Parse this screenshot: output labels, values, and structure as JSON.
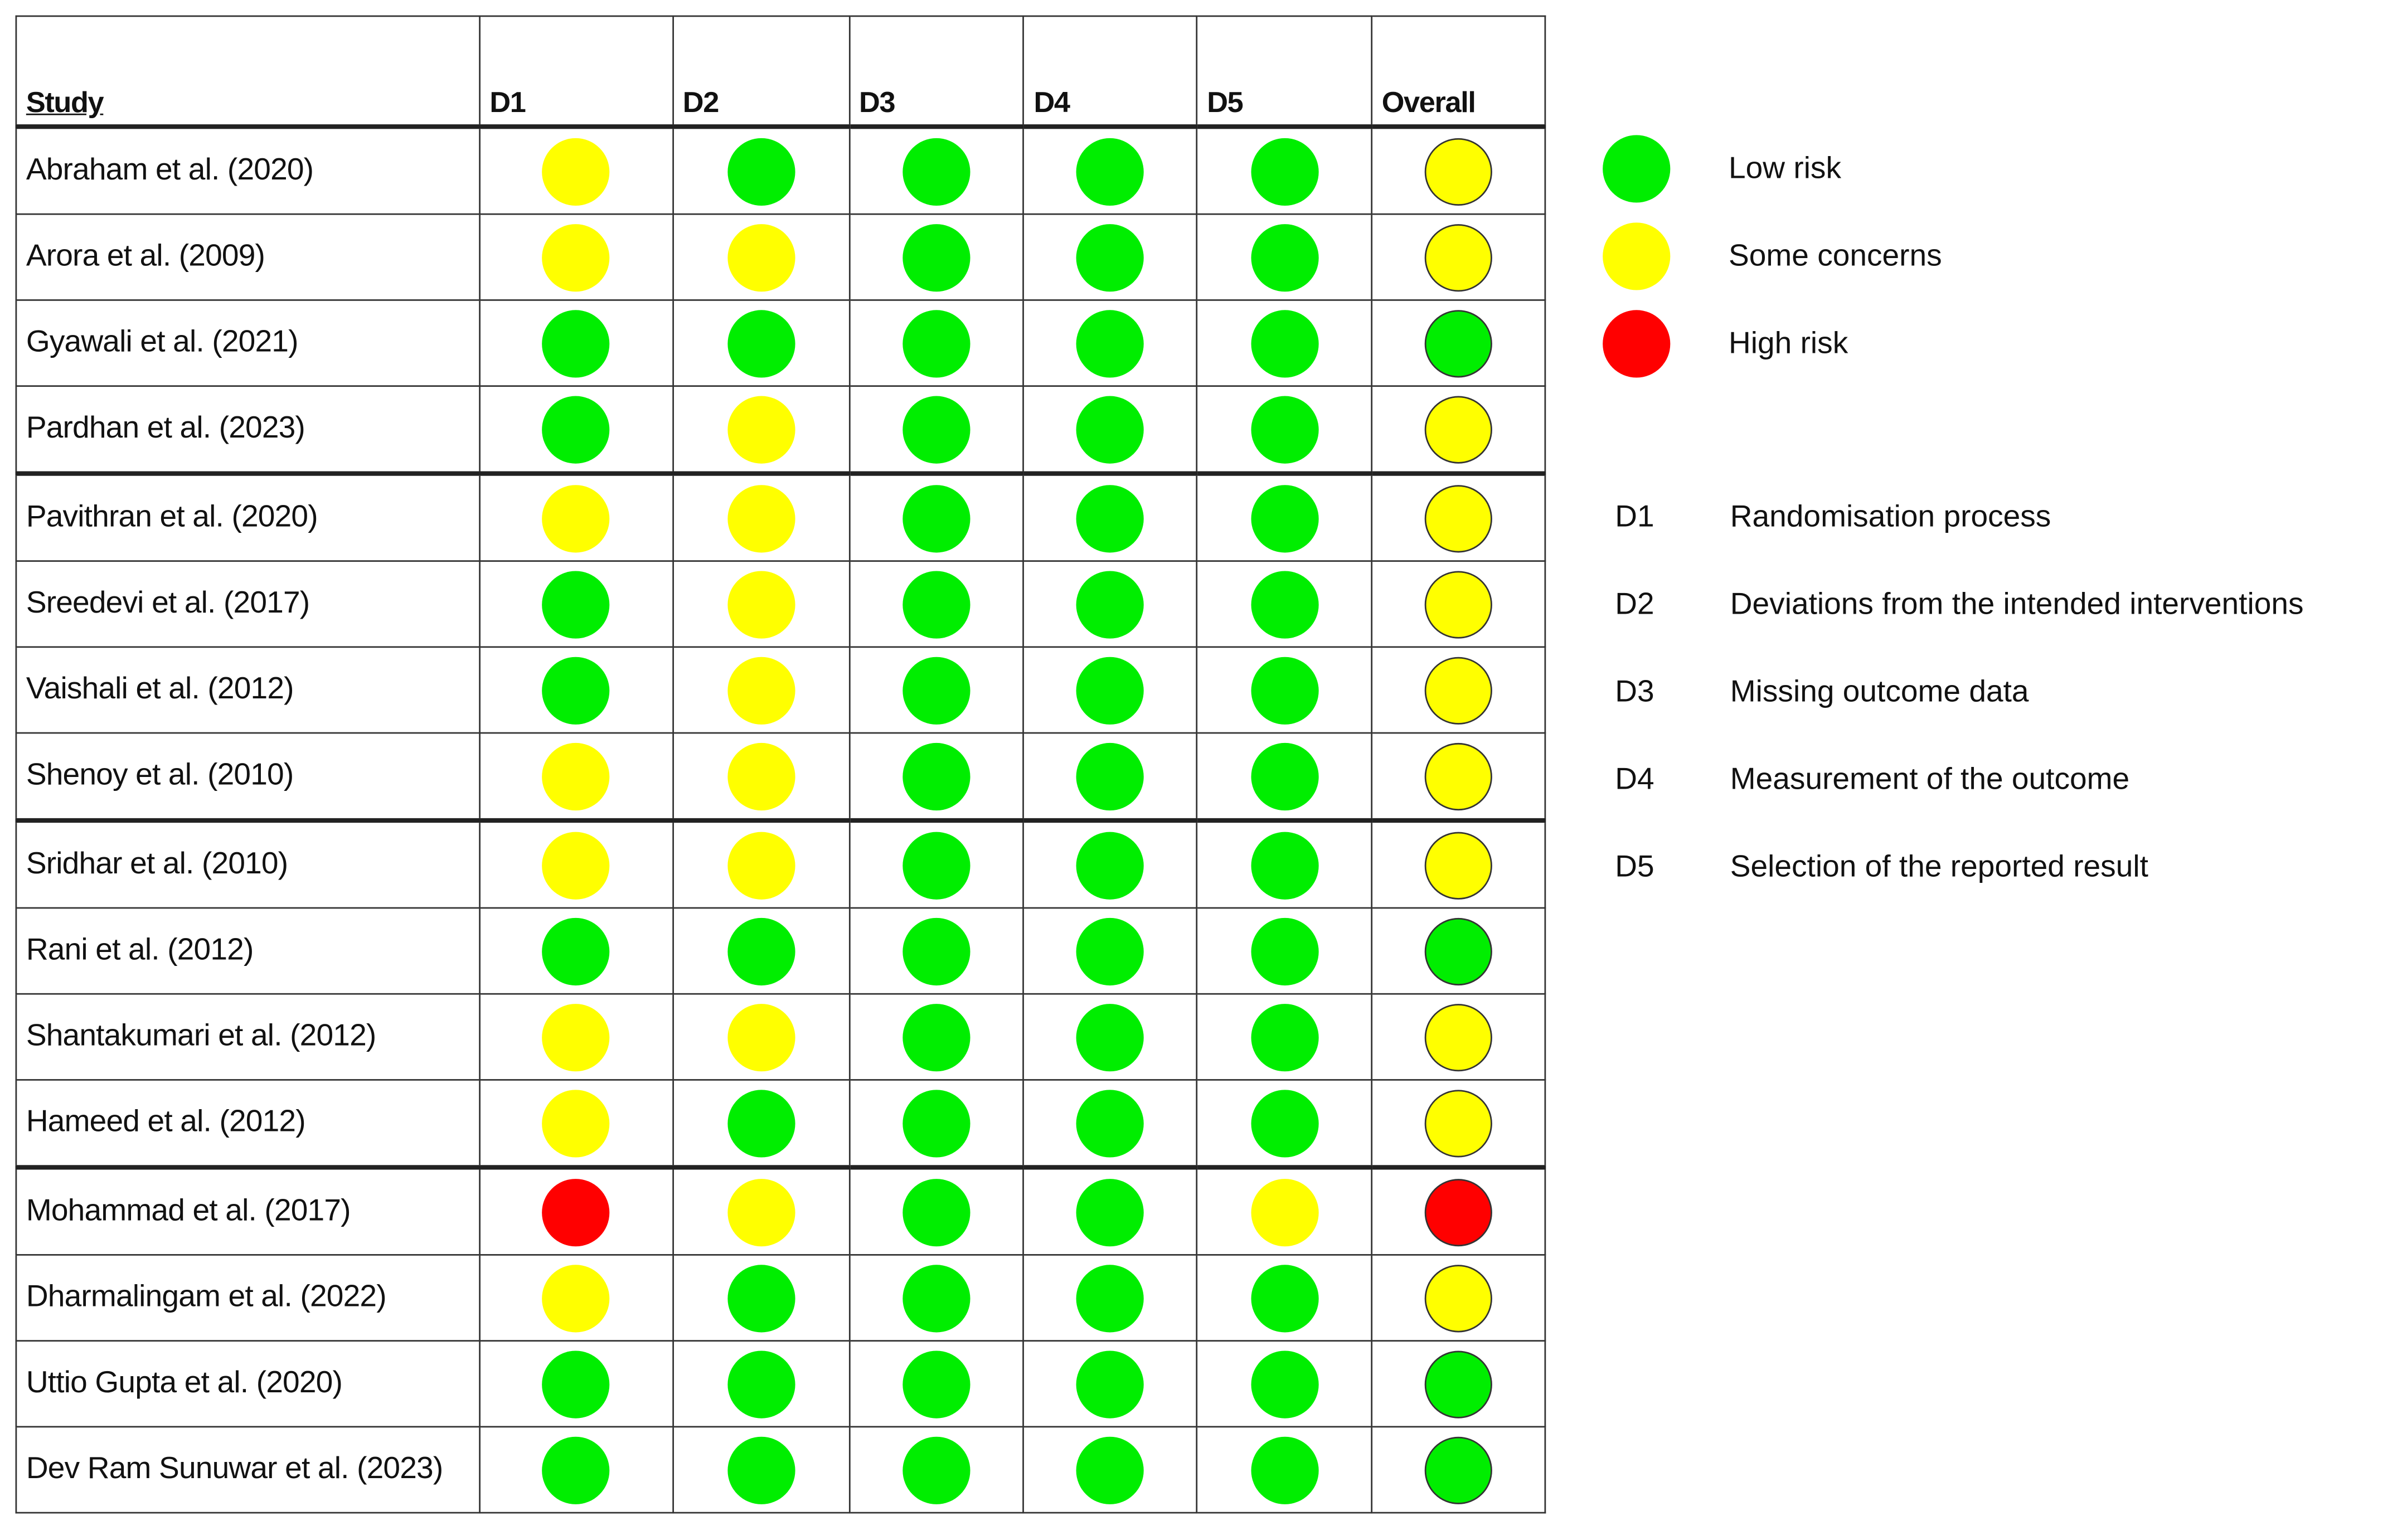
{
  "headers": {
    "study": "Study",
    "domains": [
      "D1",
      "D2",
      "D3",
      "D4",
      "D5"
    ],
    "overall": "Overall"
  },
  "colors": {
    "low": "#00ee00",
    "some": "#ffff00",
    "high": "#ff0000"
  },
  "rows": [
    {
      "study": "Abraham et al. (2020)",
      "d": [
        "some",
        "low",
        "low",
        "low",
        "low"
      ],
      "overall": "some"
    },
    {
      "study": "Arora et al. (2009)",
      "d": [
        "some",
        "some",
        "low",
        "low",
        "low"
      ],
      "overall": "some"
    },
    {
      "study": "Gyawali et al. (2021)",
      "d": [
        "low",
        "low",
        "low",
        "low",
        "low"
      ],
      "overall": "low"
    },
    {
      "study": "Pardhan et al. (2023)",
      "d": [
        "low",
        "some",
        "low",
        "low",
        "low"
      ],
      "overall": "some"
    },
    {
      "study": "Pavithran et al. (2020)",
      "d": [
        "some",
        "some",
        "low",
        "low",
        "low"
      ],
      "overall": "some"
    },
    {
      "study": "Sreedevi et al. (2017)",
      "d": [
        "low",
        "some",
        "low",
        "low",
        "low"
      ],
      "overall": "some"
    },
    {
      "study": "Vaishali et al. (2012)",
      "d": [
        "low",
        "some",
        "low",
        "low",
        "low"
      ],
      "overall": "some"
    },
    {
      "study": "Shenoy et al. (2010)",
      "d": [
        "some",
        "some",
        "low",
        "low",
        "low"
      ],
      "overall": "some"
    },
    {
      "study": "Sridhar et al. (2010)",
      "d": [
        "some",
        "some",
        "low",
        "low",
        "low"
      ],
      "overall": "some"
    },
    {
      "study": "Rani et al. (2012)",
      "d": [
        "low",
        "low",
        "low",
        "low",
        "low"
      ],
      "overall": "low"
    },
    {
      "study": "Shantakumari et al. (2012)",
      "d": [
        "some",
        "some",
        "low",
        "low",
        "low"
      ],
      "overall": "some"
    },
    {
      "study": "Hameed et al. (2012)",
      "d": [
        "some",
        "low",
        "low",
        "low",
        "low"
      ],
      "overall": "some"
    },
    {
      "study": "Mohammad et al. (2017)",
      "d": [
        "high",
        "some",
        "low",
        "low",
        "some"
      ],
      "overall": "high"
    },
    {
      "study": "Dharmalingam et al. (2022)",
      "d": [
        "some",
        "low",
        "low",
        "low",
        "low"
      ],
      "overall": "some"
    },
    {
      "study": "Uttio Gupta et al. (2020)",
      "d": [
        "low",
        "low",
        "low",
        "low",
        "low"
      ],
      "overall": "low"
    },
    {
      "study": "Dev Ram Sunuwar et al. (2023)",
      "d": [
        "low",
        "low",
        "low",
        "low",
        "low"
      ],
      "overall": "low"
    }
  ],
  "legend": {
    "judgements": [
      {
        "key": "low",
        "label": "Low risk"
      },
      {
        "key": "some",
        "label": "Some concerns"
      },
      {
        "key": "high",
        "label": "High risk"
      }
    ],
    "domains": [
      {
        "code": "D1",
        "label": "Randomisation process"
      },
      {
        "code": "D2",
        "label": "Deviations from the intended interventions"
      },
      {
        "code": "D3",
        "label": "Missing outcome data"
      },
      {
        "code": "D4",
        "label": "Measurement of the outcome"
      },
      {
        "code": "D5",
        "label": "Selection of the reported result"
      }
    ]
  }
}
